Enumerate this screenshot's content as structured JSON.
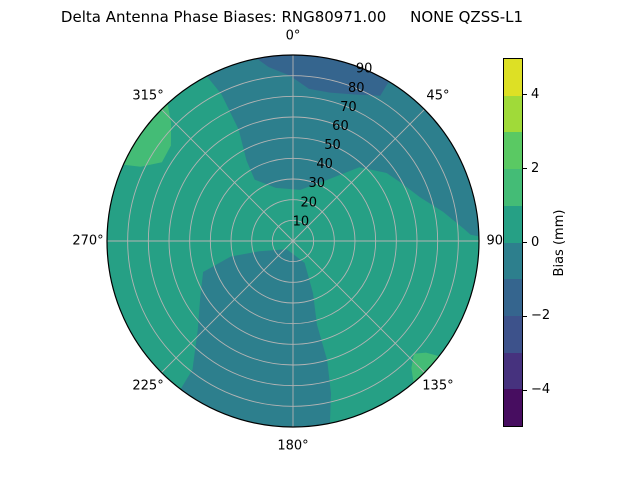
{
  "title": "Delta Antenna Phase Biases: RNG80971.00     NONE QZSS-L1",
  "colors": {
    "background": "#ffffff",
    "grid": "#b4b4b4",
    "outline": "#000000",
    "text": "#000000"
  },
  "chart_data": {
    "type": "polar_contour",
    "title": "Delta Antenna Phase Biases: RNG80971.00     NONE QZSS-L1",
    "theta_direction": "clockwise",
    "theta_zero_location": "top",
    "theta_ticks": [
      {
        "label": "0°",
        "az_deg": 0
      },
      {
        "label": "45°",
        "az_deg": 45
      },
      {
        "label": "90°",
        "az_deg": 90
      },
      {
        "label": "135°",
        "az_deg": 135
      },
      {
        "label": "180°",
        "az_deg": 180
      },
      {
        "label": "225°",
        "az_deg": 225
      },
      {
        "label": "270°",
        "az_deg": 270
      },
      {
        "label": "315°",
        "az_deg": 315
      }
    ],
    "r_ticks": [
      "10",
      "20",
      "30",
      "40",
      "50",
      "60",
      "70",
      "80",
      "90"
    ],
    "r_max": 90,
    "r_label_angle_deg": 22.5,
    "grid": true,
    "colorbar": {
      "label": "Bias (mm)",
      "range_mm": [
        -5,
        5
      ],
      "tick_labels": [
        "4",
        "2",
        "0",
        "−2",
        "−4"
      ],
      "tick_values": [
        4,
        2,
        0,
        -2,
        -4
      ],
      "tick_fractions_from_top": [
        0.1,
        0.3,
        0.5,
        0.7,
        0.9
      ],
      "band_colors_bottom_to_top": [
        "#470d60",
        "#46327e",
        "#3d528b",
        "#35658e",
        "#2d7f8d",
        "#26a085",
        "#44bc76",
        "#5ac963",
        "#a0da39",
        "#dde025"
      ],
      "band_ranges_mm_bottom_to_top": [
        "-5 to -4",
        "-4 to -3",
        "-3 to -2",
        "-2 to -1",
        "-1 to 0",
        "0 to 1",
        "1 to 2",
        "2 to 3",
        "3 to 4",
        "4 to 5"
      ]
    },
    "base_band": {
      "value_mm": "0 to 1",
      "color": "#26a085"
    },
    "regions": [
      {
        "name": "north-negative-lobe",
        "value_mm": "-1 to 0",
        "color": "#2d7f8d",
        "rim_arc": {
          "from_az": 332,
          "to_az": 89
        },
        "points_az_r": [
          [
            88,
            86
          ],
          [
            86,
            83
          ],
          [
            79,
            74
          ],
          [
            71,
            65
          ],
          [
            61,
            59
          ],
          [
            54,
            56
          ],
          [
            42,
            48
          ],
          [
            28,
            33
          ],
          [
            8,
            25
          ],
          [
            342,
            27
          ],
          [
            328,
            35
          ],
          [
            330,
            45
          ],
          [
            334,
            60
          ],
          [
            334,
            79
          ]
        ]
      },
      {
        "name": "zenith-north-cap",
        "value_mm": "-2 to -1",
        "color": "#35658e",
        "rim_arc": {
          "from_az": 347,
          "to_az": 31
        },
        "points_az_r": [
          [
            31,
            82
          ],
          [
            23,
            77
          ],
          [
            14,
            74
          ],
          [
            6,
            74
          ],
          [
            359,
            80
          ],
          [
            352,
            85
          ]
        ]
      },
      {
        "name": "south-negative-lobe",
        "value_mm": "-1 to 0",
        "color": "#2d7f8d",
        "rim_arc": {
          "from_az": 169,
          "to_az": 217
        },
        "points_az_r": [
          [
            218,
            79
          ],
          [
            227,
            63
          ],
          [
            238,
            53
          ],
          [
            251,
            46
          ],
          [
            256,
            31
          ],
          [
            253,
            17
          ],
          [
            217,
            5
          ],
          [
            152,
            12
          ],
          [
            159,
            27
          ],
          [
            164,
            42
          ],
          [
            164,
            60
          ],
          [
            166,
            76
          ]
        ]
      },
      {
        "name": "northwest-rim-positive-patch",
        "value_mm": "1 to 2",
        "color": "#44bc76",
        "rim_arc": null,
        "points_az_r": [
          [
            294,
            91
          ],
          [
            300,
            95
          ],
          [
            306,
            96
          ],
          [
            312,
            95
          ],
          [
            318,
            91
          ],
          [
            314,
            82
          ],
          [
            308,
            75
          ],
          [
            301,
            74
          ],
          [
            296,
            82
          ]
        ]
      },
      {
        "name": "southeast-rim-positive-patch",
        "value_mm": "1 to 2",
        "color": "#44bc76",
        "rim_arc": null,
        "points_az_r": [
          [
            128,
            91
          ],
          [
            134,
            94
          ],
          [
            140,
            91
          ],
          [
            137,
            84
          ],
          [
            133,
            80
          ],
          [
            130,
            84
          ]
        ]
      }
    ]
  }
}
